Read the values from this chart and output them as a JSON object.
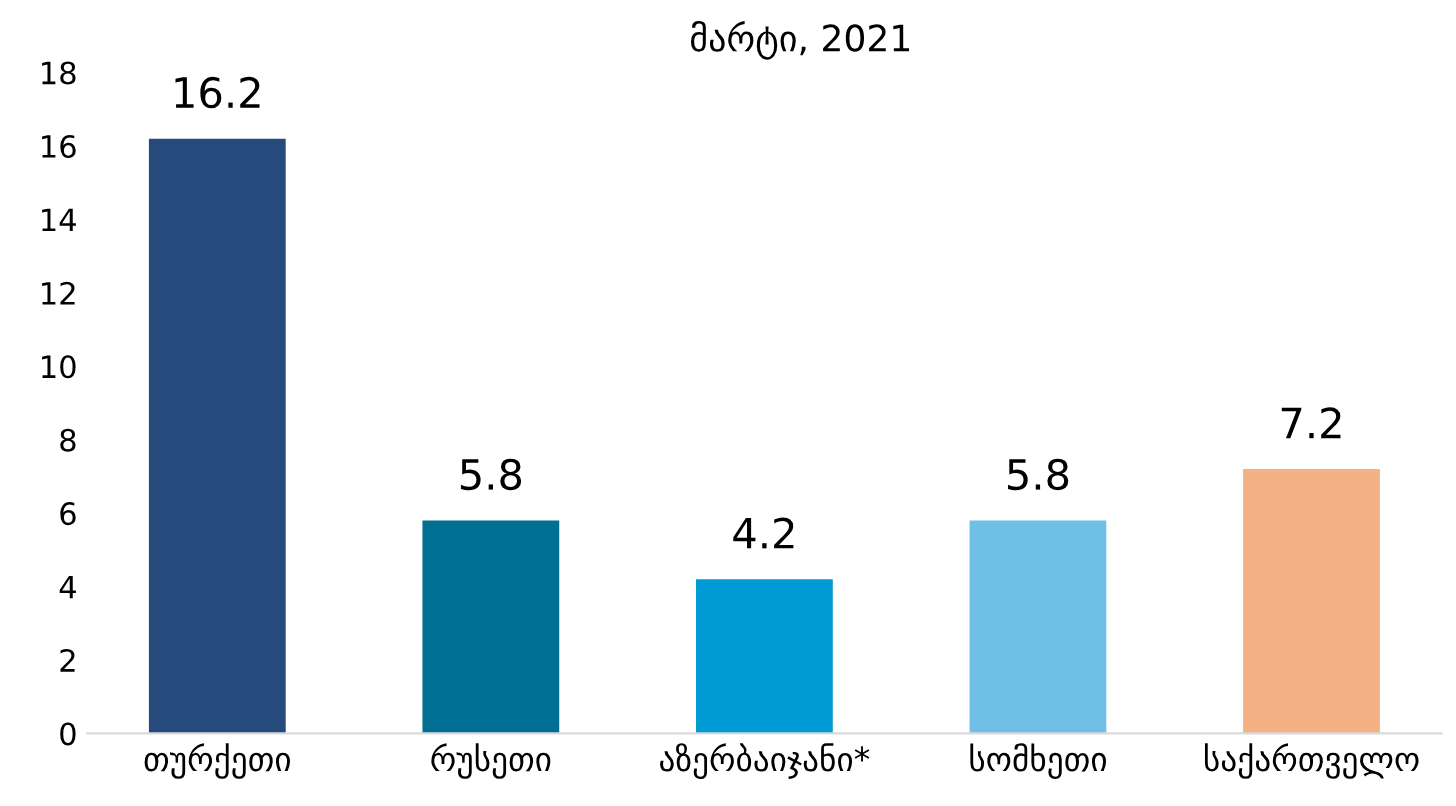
{
  "chart_data": {
    "type": "bar",
    "title": "მარტი, 2021",
    "categories": [
      "თურქეთი",
      "რუსეთი",
      "აზერბაიჯანი*",
      "სომხეთი",
      "საქართველო"
    ],
    "values": [
      16.2,
      5.8,
      4.2,
      5.8,
      7.2
    ],
    "colors": [
      "#264a7c",
      "#006f94",
      "#009ad4",
      "#6fbfe6",
      "#f4b183"
    ],
    "data_labels": true,
    "ylim": [
      0,
      18
    ],
    "yticks": [
      0,
      2,
      4,
      6,
      8,
      10,
      12,
      14,
      16,
      18
    ],
    "grid": false
  }
}
